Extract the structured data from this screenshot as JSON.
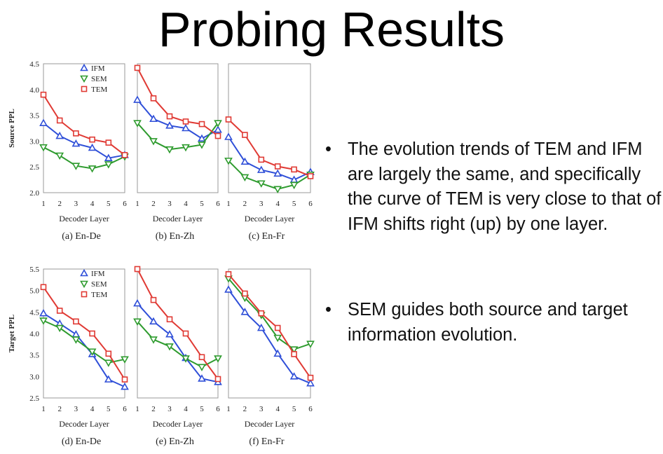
{
  "title": "Probing Results",
  "colors": {
    "IFM": "#2f4fd8",
    "SEM": "#2e9b2e",
    "TEM": "#e03a34"
  },
  "bullets": [
    "The evolution trends of TEM and IFM are largely the same, and specifically the curve of TEM is very close to that of IFM shifts right (up) by one layer.",
    "SEM guides both source and target information evolution."
  ],
  "chart_data": [
    {
      "type": "line",
      "caption": "(a) En-De",
      "xlabel": "Decoder Layer",
      "ylabel": "Source PPL",
      "x": [
        1,
        2,
        3,
        4,
        5,
        6
      ],
      "ylim": [
        2.0,
        4.5
      ],
      "yticks": [
        "2.0",
        "2.5",
        "3.0",
        "3.5",
        "4.0",
        "4.5"
      ],
      "legend": "top-center",
      "series": [
        {
          "name": "IFM",
          "marker": "triangle-up",
          "values": [
            3.35,
            3.1,
            2.95,
            2.87,
            2.67,
            2.73
          ]
        },
        {
          "name": "SEM",
          "marker": "triangle-down",
          "values": [
            2.88,
            2.72,
            2.52,
            2.47,
            2.55,
            2.7
          ]
        },
        {
          "name": "TEM",
          "marker": "square",
          "values": [
            3.9,
            3.4,
            3.15,
            3.03,
            2.97,
            2.73
          ]
        }
      ]
    },
    {
      "type": "line",
      "caption": "(b) En-Zh",
      "xlabel": "Decoder Layer",
      "x": [
        1,
        2,
        3,
        4,
        5,
        6
      ],
      "ylim": [
        2.0,
        4.5
      ],
      "series": [
        {
          "name": "IFM",
          "marker": "triangle-up",
          "values": [
            3.8,
            3.43,
            3.3,
            3.25,
            3.05,
            3.22
          ]
        },
        {
          "name": "SEM",
          "marker": "triangle-down",
          "values": [
            3.35,
            3.0,
            2.84,
            2.88,
            2.93,
            3.35
          ]
        },
        {
          "name": "TEM",
          "marker": "square",
          "values": [
            4.42,
            3.83,
            3.48,
            3.38,
            3.33,
            3.1
          ]
        }
      ]
    },
    {
      "type": "line",
      "caption": "(c) En-Fr",
      "xlabel": "Decoder Layer",
      "x": [
        1,
        2,
        3,
        4,
        5,
        6
      ],
      "ylim": [
        2.0,
        4.5
      ],
      "series": [
        {
          "name": "IFM",
          "marker": "triangle-up",
          "values": [
            3.08,
            2.6,
            2.44,
            2.37,
            2.25,
            2.4
          ]
        },
        {
          "name": "SEM",
          "marker": "triangle-down",
          "values": [
            2.62,
            2.3,
            2.18,
            2.07,
            2.15,
            2.35
          ]
        },
        {
          "name": "TEM",
          "marker": "square",
          "values": [
            3.42,
            3.12,
            2.64,
            2.51,
            2.45,
            2.32
          ]
        }
      ]
    },
    {
      "type": "line",
      "caption": "(d) En-De",
      "xlabel": "Decoder Layer",
      "ylabel": "Target PPL",
      "x": [
        1,
        2,
        3,
        4,
        5,
        6
      ],
      "ylim": [
        2.5,
        5.5
      ],
      "yticks": [
        "2.5",
        "3.0",
        "3.5",
        "4.0",
        "4.5",
        "5.0",
        "5.5"
      ],
      "legend": "top-center",
      "series": [
        {
          "name": "IFM",
          "marker": "triangle-up",
          "values": [
            4.47,
            4.23,
            3.98,
            3.52,
            2.93,
            2.76
          ]
        },
        {
          "name": "SEM",
          "marker": "triangle-down",
          "values": [
            4.3,
            4.13,
            3.86,
            3.58,
            3.32,
            3.4
          ]
        },
        {
          "name": "TEM",
          "marker": "square",
          "values": [
            5.08,
            4.53,
            4.28,
            4.0,
            3.53,
            2.93
          ]
        }
      ]
    },
    {
      "type": "line",
      "caption": "(e) En-Zh",
      "xlabel": "Decoder Layer",
      "x": [
        1,
        2,
        3,
        4,
        5,
        6
      ],
      "ylim": [
        2.5,
        5.5
      ],
      "series": [
        {
          "name": "IFM",
          "marker": "triangle-up",
          "values": [
            4.7,
            4.28,
            3.98,
            3.43,
            2.95,
            2.87
          ]
        },
        {
          "name": "SEM",
          "marker": "triangle-down",
          "values": [
            4.28,
            3.86,
            3.7,
            3.42,
            3.22,
            3.42
          ]
        },
        {
          "name": "TEM",
          "marker": "square",
          "values": [
            5.5,
            4.78,
            4.33,
            4.0,
            3.45,
            2.94
          ]
        }
      ]
    },
    {
      "type": "line",
      "caption": "(f) En-Fr",
      "xlabel": "Decoder Layer",
      "x": [
        1,
        2,
        3,
        4,
        5,
        6
      ],
      "ylim": [
        2.5,
        5.5
      ],
      "series": [
        {
          "name": "IFM",
          "marker": "triangle-up",
          "values": [
            5.02,
            4.5,
            4.13,
            3.53,
            3.0,
            2.84
          ]
        },
        {
          "name": "SEM",
          "marker": "triangle-down",
          "values": [
            5.28,
            4.83,
            4.43,
            3.9,
            3.63,
            3.76
          ]
        },
        {
          "name": "TEM",
          "marker": "square",
          "values": [
            5.38,
            4.93,
            4.47,
            4.13,
            3.52,
            2.97
          ]
        }
      ]
    }
  ]
}
